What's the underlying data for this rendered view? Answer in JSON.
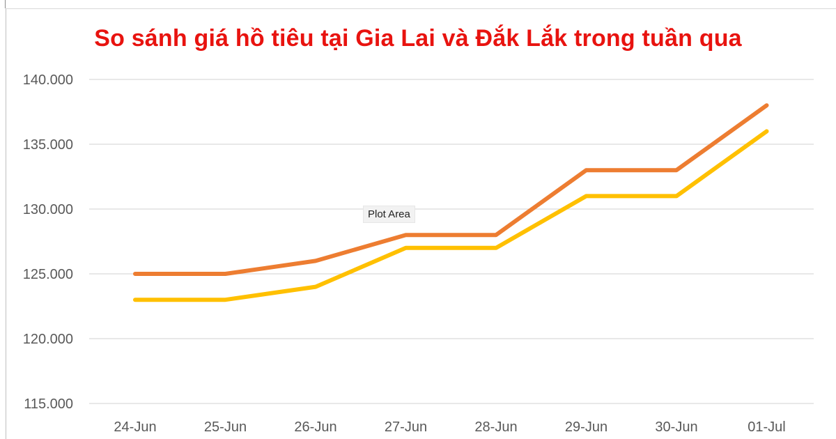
{
  "chart_data": {
    "type": "line",
    "title": "So sánh giá hồ tiêu tại Gia Lai và Đắk Lắk trong tuần qua",
    "categories": [
      "24-Jun",
      "25-Jun",
      "26-Jun",
      "27-Jun",
      "28-Jun",
      "29-Jun",
      "30-Jun",
      "01-Jul"
    ],
    "series": [
      {
        "color": "#ED7D31",
        "values": [
          125000,
          125000,
          126000,
          128000,
          128000,
          133000,
          133000,
          138000
        ]
      },
      {
        "color": "#FFC000",
        "values": [
          123000,
          123000,
          124000,
          127000,
          127000,
          131000,
          131000,
          136000
        ]
      }
    ],
    "ylim": [
      115000,
      140000
    ],
    "yticks": [
      115000,
      120000,
      125000,
      130000,
      135000,
      140000
    ],
    "ytick_labels": [
      "115.000",
      "120.000",
      "125.000",
      "130.000",
      "135.000",
      "140.000"
    ],
    "grid": true,
    "legend": "none"
  },
  "tooltip": "Plot Area",
  "colors": {
    "title": "#e8130f",
    "gridline": "#d9d9d9",
    "tick_label": "#595959"
  }
}
